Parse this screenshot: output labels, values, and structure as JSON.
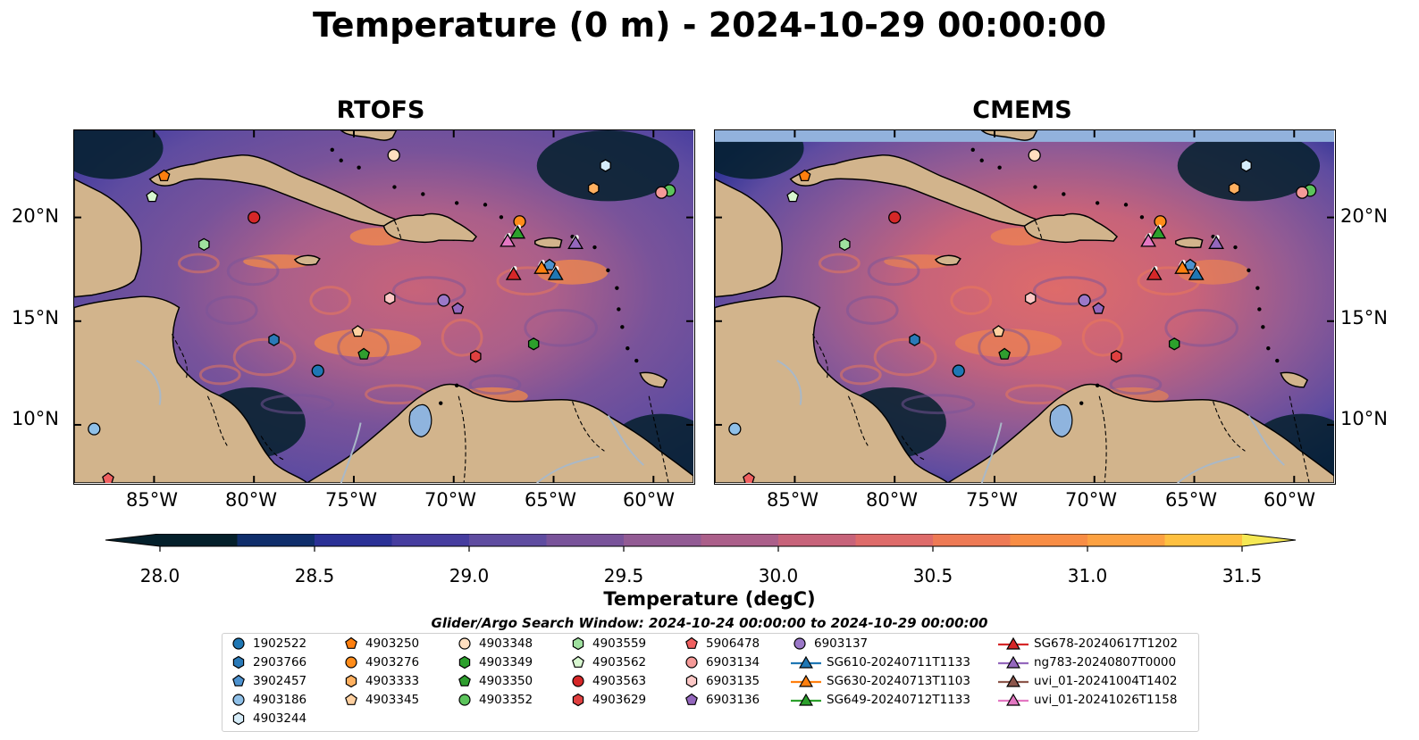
{
  "title": "Temperature (0 m) - 2024-10-29 00:00:00",
  "panels": [
    {
      "name": "RTOFS",
      "cmems_band": false
    },
    {
      "name": "CMEMS",
      "cmems_band": true
    }
  ],
  "axes": {
    "lon_ticks": [
      "85°W",
      "80°W",
      "75°W",
      "70°W",
      "65°W",
      "60°W"
    ],
    "lat_ticks": [
      "20°N",
      "15°N",
      "10°N"
    ],
    "lon_range": [
      -89,
      -58
    ],
    "lat_range": [
      7.2,
      24.2
    ]
  },
  "colorbar": {
    "label": "Temperature (degC)",
    "ticks": [
      "28.0",
      "28.5",
      "29.0",
      "29.5",
      "30.0",
      "30.5",
      "31.0",
      "31.5"
    ],
    "range": [
      28.0,
      31.5
    ],
    "extend": "both",
    "colors": [
      "#04202b",
      "#0f2e6b",
      "#2b3196",
      "#463d9f",
      "#5f4ca0",
      "#79539a",
      "#925b94",
      "#ab5f8a",
      "#c7637a",
      "#de6b6a",
      "#ee7a55",
      "#f88d45",
      "#fca142",
      "#fec040",
      "#f5e854"
    ]
  },
  "legend": {
    "title": "Glider/Argo Search Window: 2024-10-24 00:00:00 to 2024-10-29 00:00:00",
    "argo": [
      {
        "id": "1902522",
        "marker": "circle",
        "color": "#1f77b4"
      },
      {
        "id": "2903766",
        "marker": "hexagon",
        "color": "#2a7ab8"
      },
      {
        "id": "3902457",
        "marker": "pentagon",
        "color": "#4d92cf"
      },
      {
        "id": "4903186",
        "marker": "circle",
        "color": "#8fc0e8"
      },
      {
        "id": "4903244",
        "marker": "hexagon",
        "color": "#d6ecf8"
      },
      {
        "id": "4903250",
        "marker": "pentagon",
        "color": "#ff7f0e"
      },
      {
        "id": "4903276",
        "marker": "circle",
        "color": "#ff8c1a"
      },
      {
        "id": "4903333",
        "marker": "hexagon",
        "color": "#ffb060"
      },
      {
        "id": "4903345",
        "marker": "pentagon",
        "color": "#ffd0a0"
      },
      {
        "id": "4903348",
        "marker": "circle",
        "color": "#ffdfc0"
      },
      {
        "id": "4903349",
        "marker": "hexagon",
        "color": "#2ca02c"
      },
      {
        "id": "4903350",
        "marker": "pentagon",
        "color": "#2f9e2f"
      },
      {
        "id": "4903352",
        "marker": "circle",
        "color": "#5cc45c"
      },
      {
        "id": "4903559",
        "marker": "hexagon",
        "color": "#9fe09f"
      },
      {
        "id": "4903562",
        "marker": "pentagon",
        "color": "#d8f7d0"
      },
      {
        "id": "4903563",
        "marker": "circle",
        "color": "#d62728"
      },
      {
        "id": "4903629",
        "marker": "hexagon",
        "color": "#e04040"
      },
      {
        "id": "5906478",
        "marker": "pentagon",
        "color": "#f06060"
      },
      {
        "id": "6903134",
        "marker": "circle",
        "color": "#f59a98"
      },
      {
        "id": "6903135",
        "marker": "hexagon",
        "color": "#fcc8c6"
      },
      {
        "id": "6903136",
        "marker": "pentagon",
        "color": "#9467bd"
      },
      {
        "id": "6903137",
        "marker": "circle",
        "color": "#9b78c8"
      }
    ],
    "gliders": [
      {
        "id": "SG610-20240711T1133",
        "color": "#1f77b4"
      },
      {
        "id": "SG630-20240713T1103",
        "color": "#ff7f0e"
      },
      {
        "id": "SG649-20240712T1133",
        "color": "#2ca02c"
      },
      {
        "id": "SG678-20240617T1202",
        "color": "#d62728"
      },
      {
        "id": "ng783-20240807T0000",
        "color": "#9467bd"
      },
      {
        "id": "uvi_01-20241004T1402",
        "color": "#8c564b"
      },
      {
        "id": "uvi_01-20241026T1158",
        "color": "#e377c2"
      }
    ]
  },
  "colors": {
    "land": "#d2b48c",
    "lakes": "#8fb4de",
    "rivers": "#a9b8c7",
    "cmems_band": "#92b2dc"
  }
}
